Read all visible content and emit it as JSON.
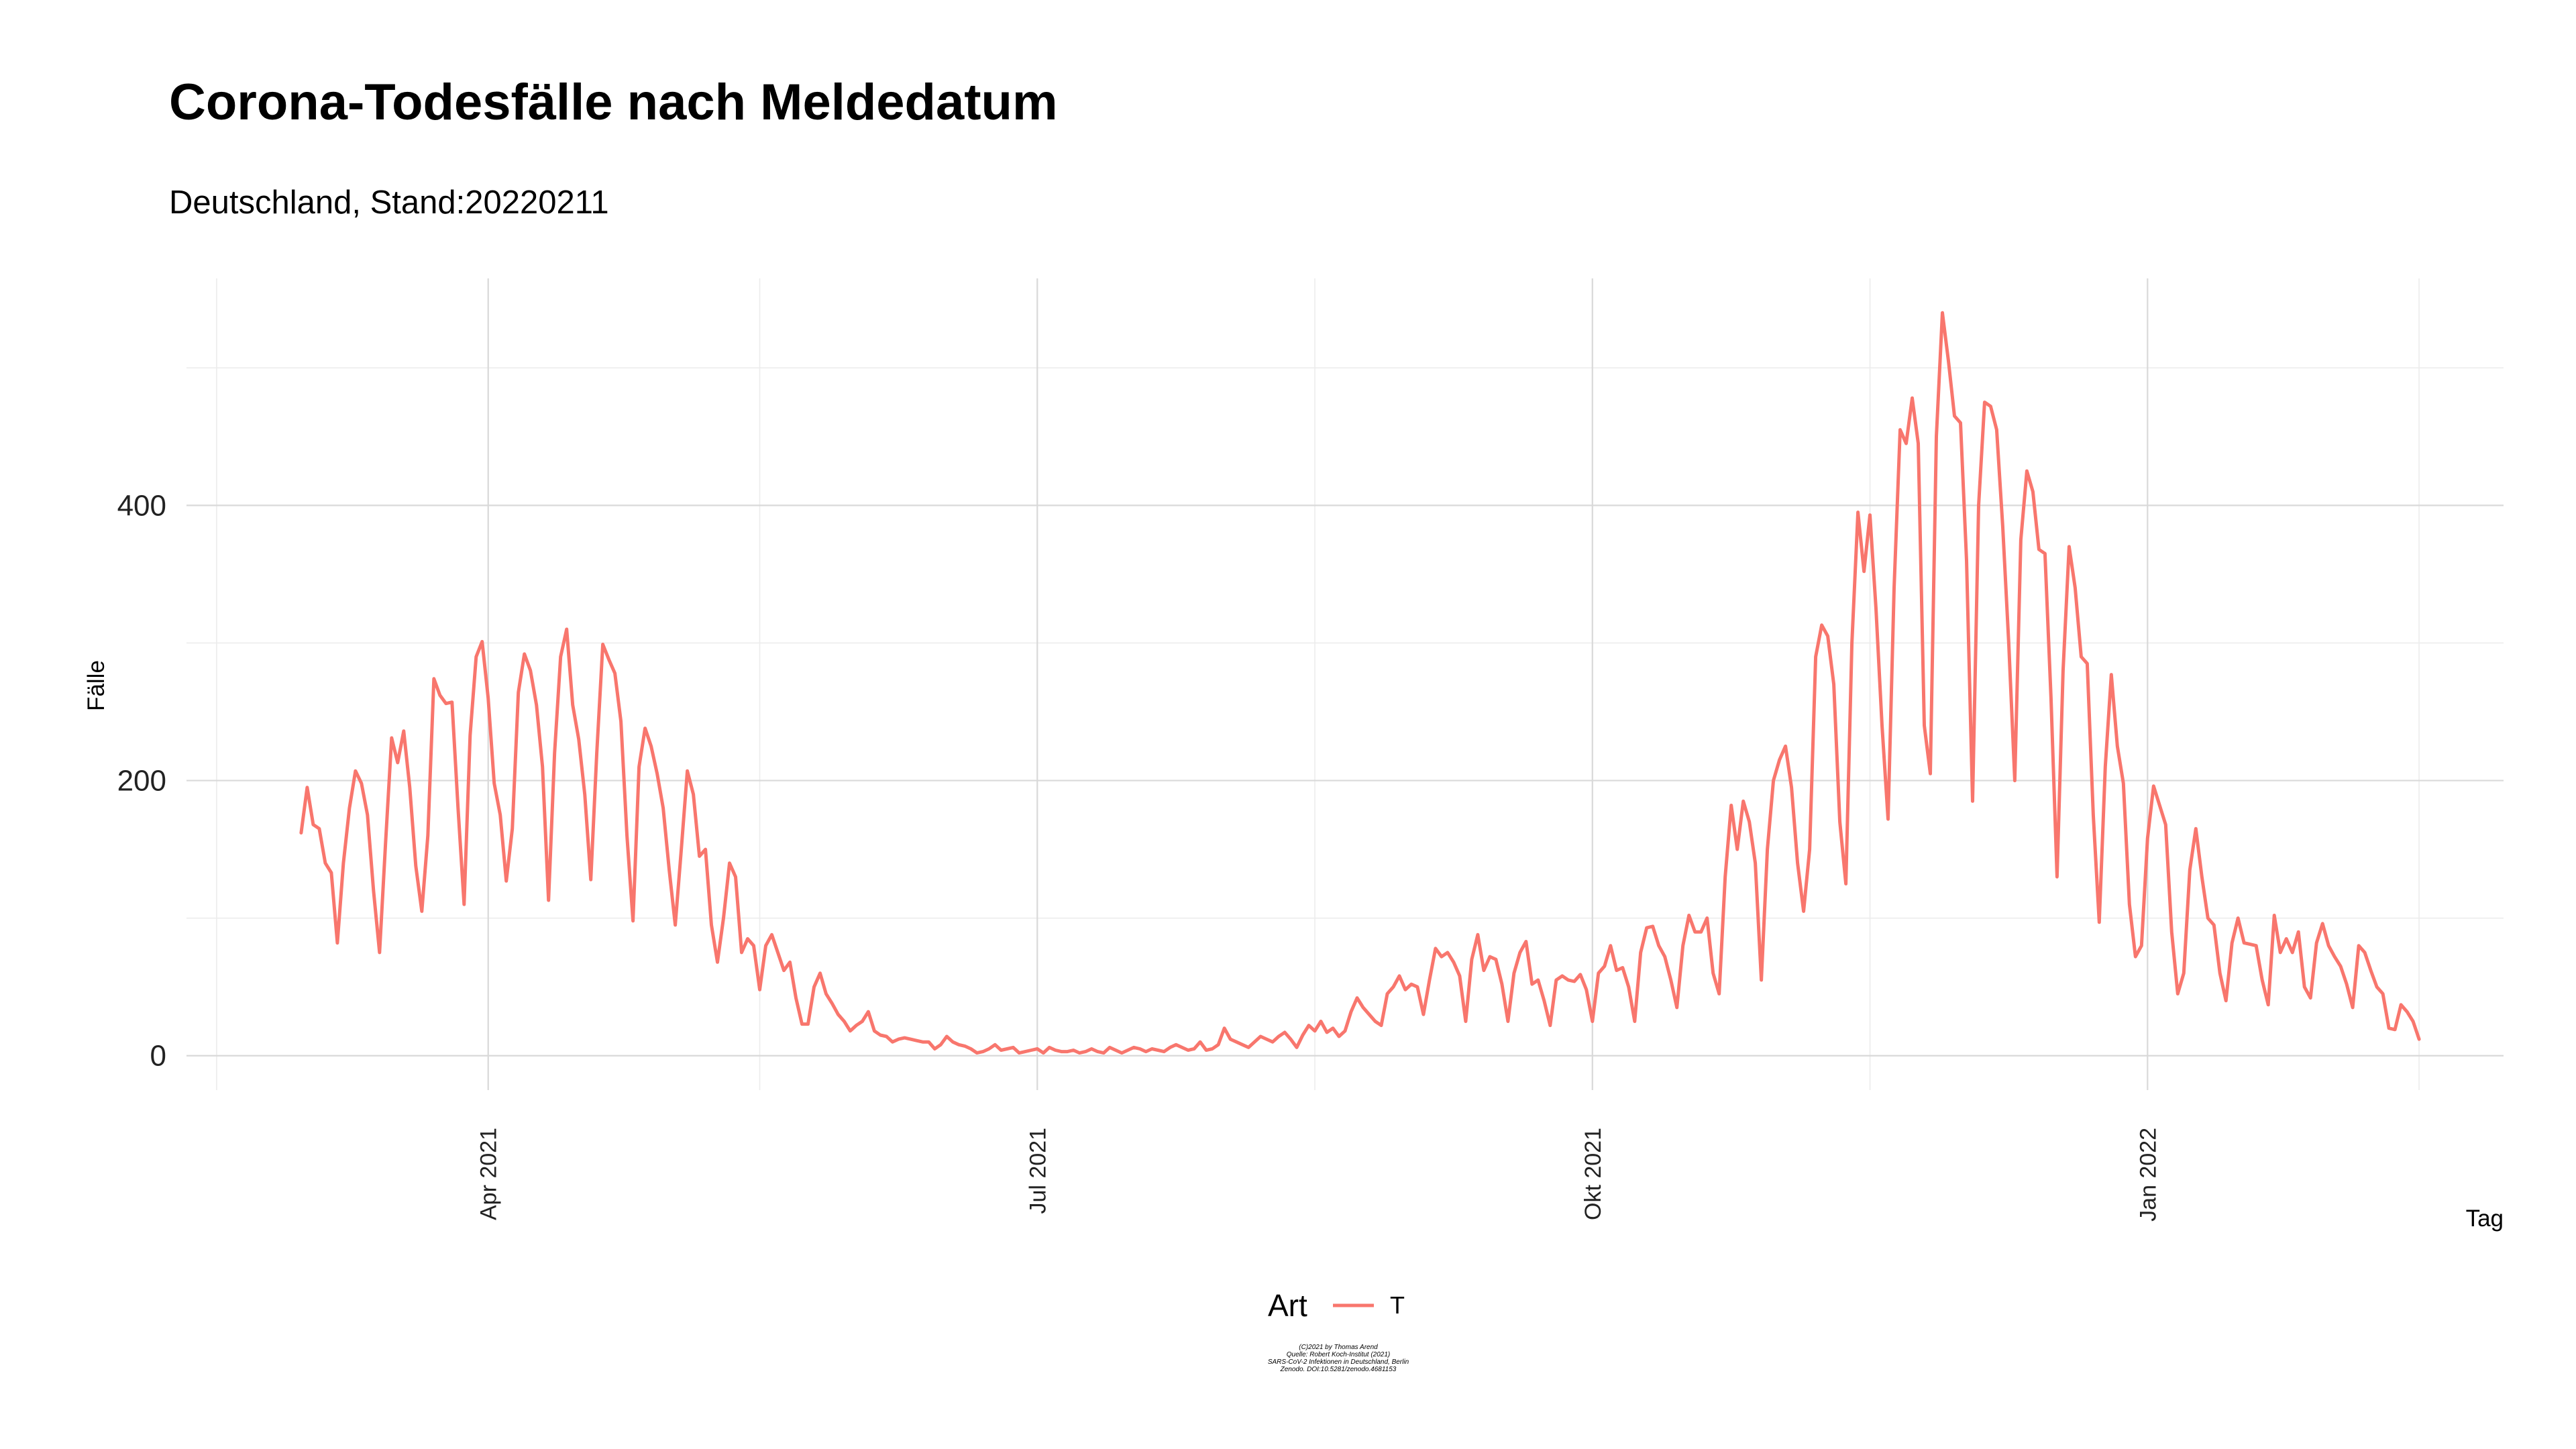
{
  "chart_data": {
    "type": "line",
    "title": "Corona-Todesfälle nach Meldedatum",
    "subtitle": "Deutschland, Stand:20220211",
    "xlabel": "Tag",
    "ylabel": "Fälle",
    "x_start": "2021-03-01",
    "x_end": "2022-02-10",
    "xlim": [
      "2021-02-10",
      "2022-03-01"
    ],
    "ylim": [
      -25,
      565
    ],
    "y_ticks": [
      0,
      200,
      400
    ],
    "y_ticks_minor": [
      100,
      300,
      500
    ],
    "x_ticks": [
      {
        "date": "2021-04-01",
        "label": "Apr 2021"
      },
      {
        "date": "2021-07-01",
        "label": "Jul 2021"
      },
      {
        "date": "2021-10-01",
        "label": "Okt 2021"
      },
      {
        "date": "2022-01-01",
        "label": "Jan 2022"
      }
    ],
    "x_ticks_minor": [
      "2021-02-15",
      "2021-05-16",
      "2021-08-16",
      "2021-11-16",
      "2022-02-15"
    ],
    "grid": true,
    "legend": {
      "title": "Art",
      "position": "bottom"
    },
    "series": [
      {
        "name": "T",
        "color": "#F8766D",
        "values": [
          162,
          195,
          168,
          165,
          140,
          133,
          82,
          140,
          180,
          207,
          198,
          175,
          120,
          75,
          155,
          231,
          213,
          236,
          195,
          138,
          105,
          160,
          274,
          262,
          256,
          257,
          180,
          110,
          233,
          290,
          301,
          260,
          198,
          175,
          127,
          165,
          264,
          292,
          280,
          255,
          210,
          113,
          220,
          290,
          310,
          255,
          230,
          190,
          128,
          220,
          299,
          288,
          278,
          243,
          160,
          98,
          210,
          238,
          225,
          205,
          180,
          135,
          95,
          150,
          207,
          190,
          145,
          150,
          95,
          68,
          100,
          140,
          130,
          75,
          85,
          80,
          48,
          80,
          88,
          75,
          62,
          68,
          42,
          23,
          23,
          50,
          60,
          45,
          38,
          30,
          25,
          18,
          22,
          25,
          32,
          18,
          15,
          14,
          10,
          12,
          13,
          12,
          11,
          10,
          10,
          5,
          8,
          14,
          10,
          8,
          7,
          5,
          2,
          3,
          5,
          8,
          4,
          5,
          6,
          2,
          3,
          4,
          5,
          2,
          6,
          4,
          3,
          3,
          4,
          2,
          3,
          5,
          3,
          2,
          6,
          4,
          2,
          4,
          6,
          5,
          3,
          5,
          4,
          3,
          6,
          8,
          6,
          4,
          5,
          10,
          4,
          5,
          8,
          20,
          12,
          10,
          8,
          6,
          10,
          14,
          12,
          10,
          14,
          17,
          12,
          6,
          15,
          22,
          18,
          25,
          17,
          20,
          14,
          18,
          32,
          42,
          35,
          30,
          25,
          22,
          45,
          50,
          58,
          48,
          52,
          50,
          30,
          55,
          78,
          72,
          75,
          68,
          58,
          25,
          70,
          88,
          62,
          72,
          70,
          52,
          25,
          60,
          75,
          83,
          52,
          55,
          40,
          22,
          55,
          58,
          55,
          54,
          59,
          48,
          25,
          60,
          65,
          80,
          62,
          64,
          50,
          25,
          75,
          93,
          94,
          80,
          72,
          55,
          35,
          80,
          102,
          90,
          90,
          100,
          60,
          45,
          130,
          182,
          150,
          185,
          170,
          140,
          55,
          150,
          200,
          215,
          225,
          195,
          140,
          105,
          150,
          290,
          313,
          305,
          270,
          170,
          125,
          300,
          395,
          352,
          393,
          325,
          240,
          172,
          340,
          455,
          445,
          478,
          445,
          240,
          205,
          450,
          540,
          505,
          465,
          460,
          360,
          185,
          400,
          475,
          472,
          455,
          385,
          300,
          200,
          375,
          425,
          410,
          368,
          365,
          260,
          130,
          280,
          370,
          340,
          290,
          285,
          175,
          97,
          210,
          277,
          225,
          198,
          110,
          72,
          80,
          158,
          196,
          182,
          168,
          90,
          45,
          60,
          135,
          165,
          130,
          100,
          95,
          60,
          40,
          82,
          100,
          82,
          81,
          80,
          55,
          37,
          102,
          75,
          85,
          75,
          90,
          50,
          42,
          82,
          96,
          80,
          72,
          65,
          52,
          35,
          80,
          75,
          62,
          50,
          45,
          20,
          19,
          37,
          32,
          25,
          12
        ]
      }
    ]
  },
  "legend": {
    "title": "Art",
    "items": [
      {
        "label": "T",
        "color": "#F8766D"
      }
    ]
  },
  "caption": {
    "line1": "(C)2021 by Thomas Arend",
    "line2": "Quelle: Robert Koch-Institut (2021)",
    "line3": "SARS-CoV-2 Infektionen in Deutschland, Berlin",
    "line4": "Zenodo. DOI:10.5281/zenodo.4681153"
  }
}
